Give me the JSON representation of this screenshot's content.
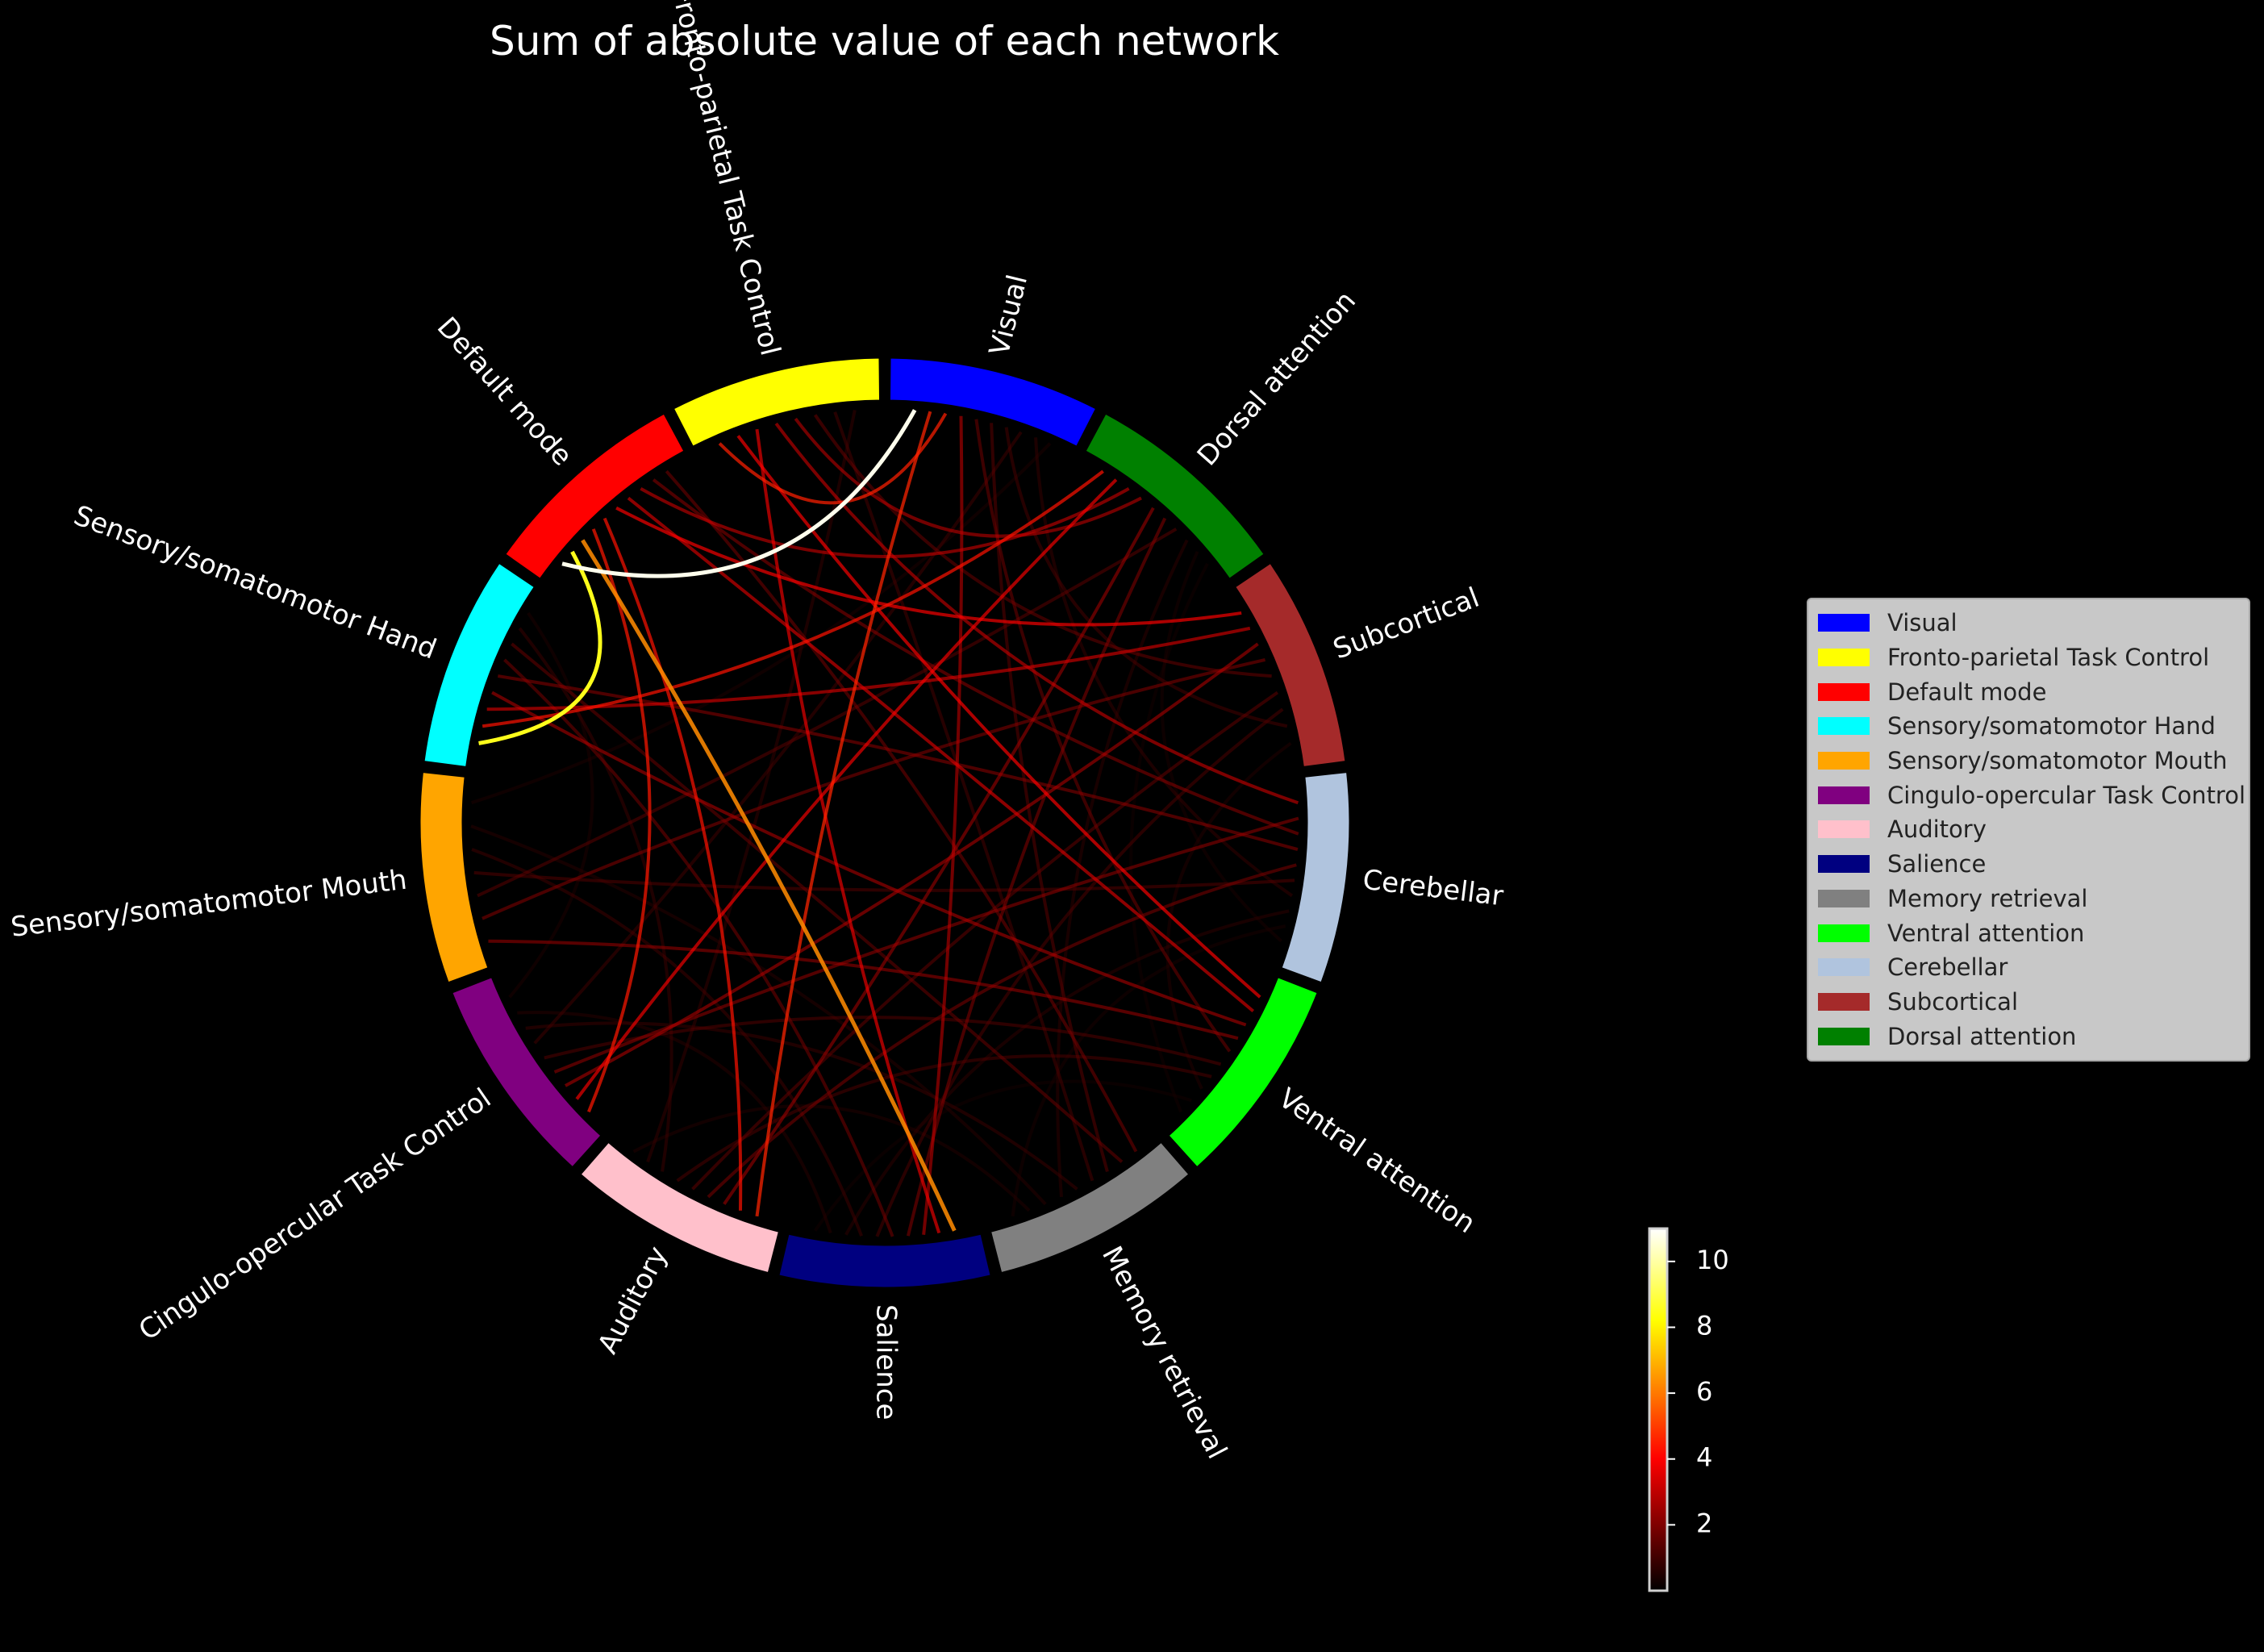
{
  "chart_data": {
    "type": "chord",
    "title": "Sum of absolute value of each network",
    "background": "#000000",
    "nodes": [
      {
        "name": "Visual",
        "color": "#0000ff"
      },
      {
        "name": "Dorsal attention",
        "color": "#008000"
      },
      {
        "name": "Subcortical",
        "color": "#a52a2a"
      },
      {
        "name": "Cerebellar",
        "color": "#b0c4de"
      },
      {
        "name": "Ventral attention",
        "color": "#00ff00"
      },
      {
        "name": "Memory retrieval",
        "color": "#808080"
      },
      {
        "name": "Salience",
        "color": "#000080"
      },
      {
        "name": "Auditory",
        "color": "#ffc0cb"
      },
      {
        "name": "Cingulo-opercular Task Control",
        "color": "#800080"
      },
      {
        "name": "Sensory/somatomotor Mouth",
        "color": "#ffa500"
      },
      {
        "name": "Sensory/somatomotor Hand",
        "color": "#00ffff"
      },
      {
        "name": "Default mode",
        "color": "#ff0000"
      },
      {
        "name": "Fronto-parietal Task Control",
        "color": "#ffff00"
      }
    ],
    "legend": [
      {
        "name": "Visual",
        "color": "#0000ff"
      },
      {
        "name": "Fronto-parietal Task Control",
        "color": "#ffff00"
      },
      {
        "name": "Default mode",
        "color": "#ff0000"
      },
      {
        "name": "Sensory/somatomotor Hand",
        "color": "#00ffff"
      },
      {
        "name": "Sensory/somatomotor Mouth",
        "color": "#ffa500"
      },
      {
        "name": "Cingulo-opercular Task Control",
        "color": "#800080"
      },
      {
        "name": "Auditory",
        "color": "#ffc0cb"
      },
      {
        "name": "Salience",
        "color": "#000080"
      },
      {
        "name": "Memory retrieval",
        "color": "#808080"
      },
      {
        "name": "Ventral attention",
        "color": "#00ff00"
      },
      {
        "name": "Cerebellar",
        "color": "#b0c4de"
      },
      {
        "name": "Subcortical",
        "color": "#a52a2a"
      },
      {
        "name": "Dorsal attention",
        "color": "#008000"
      }
    ],
    "legend_position": "right",
    "links": [
      {
        "source": "Visual",
        "target": "Default mode",
        "value": 10.8
      },
      {
        "source": "Default mode",
        "target": "Sensory/somatomotor Hand",
        "value": 8.5
      },
      {
        "source": "Default mode",
        "target": "Salience",
        "value": 6.3
      },
      {
        "source": "Visual",
        "target": "Auditory",
        "value": 4.6
      },
      {
        "source": "Visual",
        "target": "Fronto-parietal Task Control",
        "value": 4.5
      },
      {
        "source": "Default mode",
        "target": "Cingulo-opercular Task Control",
        "value": 4.4
      },
      {
        "source": "Default mode",
        "target": "Auditory",
        "value": 4.3
      },
      {
        "source": "Sensory/somatomotor Hand",
        "target": "Dorsal attention",
        "value": 4.3
      },
      {
        "source": "Default mode",
        "target": "Subcortical",
        "value": 4.0
      },
      {
        "source": "Fronto-parietal Task Control",
        "target": "Ventral attention",
        "value": 4.0
      },
      {
        "source": "Cingulo-opercular Task Control",
        "target": "Dorsal attention",
        "value": 3.9
      },
      {
        "source": "Fronto-parietal Task Control",
        "target": "Salience",
        "value": 3.8
      },
      {
        "source": "Default mode",
        "target": "Ventral attention",
        "value": 3.5
      },
      {
        "source": "Sensory/somatomotor Hand",
        "target": "Subcortical",
        "value": 3.4
      },
      {
        "source": "Fronto-parietal Task Control",
        "target": "Cerebellar",
        "value": 3.2
      },
      {
        "source": "Default mode",
        "target": "Dorsal attention",
        "value": 3.2
      },
      {
        "source": "Visual",
        "target": "Salience",
        "value": 3.0
      },
      {
        "source": "Fronto-parietal Task Control",
        "target": "Dorsal attention",
        "value": 3.0
      },
      {
        "source": "Sensory/somatomotor Hand",
        "target": "Ventral attention",
        "value": 2.8
      },
      {
        "source": "Cingulo-opercular Task Control",
        "target": "Subcortical",
        "value": 2.8
      },
      {
        "source": "Auditory",
        "target": "Dorsal attention",
        "value": 2.6
      },
      {
        "source": "Sensory/somatomotor Mouth",
        "target": "Ventral attention",
        "value": 2.5
      },
      {
        "source": "Cingulo-opercular Task Control",
        "target": "Cerebellar",
        "value": 2.4
      },
      {
        "source": "Sensory/somatomotor Hand",
        "target": "Cerebellar",
        "value": 2.3
      },
      {
        "source": "Default mode",
        "target": "Cerebellar",
        "value": 2.3
      },
      {
        "source": "Sensory/somatomotor Mouth",
        "target": "Subcortical",
        "value": 2.2
      },
      {
        "source": "Salience",
        "target": "Dorsal attention",
        "value": 2.2
      },
      {
        "source": "Auditory",
        "target": "Cerebellar",
        "value": 2.1
      },
      {
        "source": "Memory retrieval",
        "target": "Default mode",
        "value": 2.0
      },
      {
        "source": "Salience",
        "target": "Sensory/somatomotor Hand",
        "value": 2.0
      },
      {
        "source": "Visual",
        "target": "Ventral attention",
        "value": 1.9
      },
      {
        "source": "Memory retrieval",
        "target": "Sensory/somatomotor Hand",
        "value": 1.8
      },
      {
        "source": "Fronto-parietal Task Control",
        "target": "Subcortical",
        "value": 1.8
      },
      {
        "source": "Auditory",
        "target": "Subcortical",
        "value": 1.7
      },
      {
        "source": "Sensory/somatomotor Mouth",
        "target": "Dorsal attention",
        "value": 1.6
      },
      {
        "source": "Memory retrieval",
        "target": "Visual",
        "value": 1.6
      },
      {
        "source": "Sensory/somatomotor Mouth",
        "target": "Cerebellar",
        "value": 1.5
      },
      {
        "source": "Cingulo-opercular Task Control",
        "target": "Ventral attention",
        "value": 1.5
      },
      {
        "source": "Auditory",
        "target": "Ventral attention",
        "value": 1.4
      },
      {
        "source": "Salience",
        "target": "Subcortical",
        "value": 1.4
      },
      {
        "source": "Visual",
        "target": "Subcortical",
        "value": 1.3
      },
      {
        "source": "Memory retrieval",
        "target": "Fronto-parietal Task Control",
        "value": 1.3
      },
      {
        "source": "Visual",
        "target": "Cingulo-opercular Task Control",
        "value": 1.2
      },
      {
        "source": "Sensory/somatomotor Mouth",
        "target": "Salience",
        "value": 1.2
      },
      {
        "source": "Cingulo-opercular Task Control",
        "target": "Memory retrieval",
        "value": 1.1
      },
      {
        "source": "Sensory/somatomotor Hand",
        "target": "Auditory",
        "value": 1.1
      },
      {
        "source": "Visual",
        "target": "Cerebellar",
        "value": 1.0
      },
      {
        "source": "Fronto-parietal Task Control",
        "target": "Auditory",
        "value": 1.0
      },
      {
        "source": "Salience",
        "target": "Cerebellar",
        "value": 0.9
      },
      {
        "source": "Memory retrieval",
        "target": "Dorsal attention",
        "value": 0.9
      },
      {
        "source": "Sensory/somatomotor Mouth",
        "target": "Memory retrieval",
        "value": 0.8
      },
      {
        "source": "Cingulo-opercular Task Control",
        "target": "Salience",
        "value": 0.8
      },
      {
        "source": "Auditory",
        "target": "Memory retrieval",
        "value": 0.7
      },
      {
        "source": "Ventral attention",
        "target": "Subcortical",
        "value": 0.7
      },
      {
        "source": "Visual",
        "target": "Sensory/somatomotor Mouth",
        "value": 0.6
      },
      {
        "source": "Sensory/somatomotor Hand",
        "target": "Cingulo-opercular Task Control",
        "value": 0.6
      },
      {
        "source": "Cerebellar",
        "target": "Dorsal attention",
        "value": 0.5
      },
      {
        "source": "Memory retrieval",
        "target": "Cerebellar",
        "value": 0.5
      },
      {
        "source": "Ventral attention",
        "target": "Dorsal attention",
        "value": 0.4
      },
      {
        "source": "Salience",
        "target": "Ventral attention",
        "value": 0.4
      }
    ],
    "colorbar": {
      "colormap": "hot",
      "range": [
        0,
        11
      ],
      "ticks": [
        "2",
        "4",
        "6",
        "8",
        "10"
      ]
    }
  }
}
